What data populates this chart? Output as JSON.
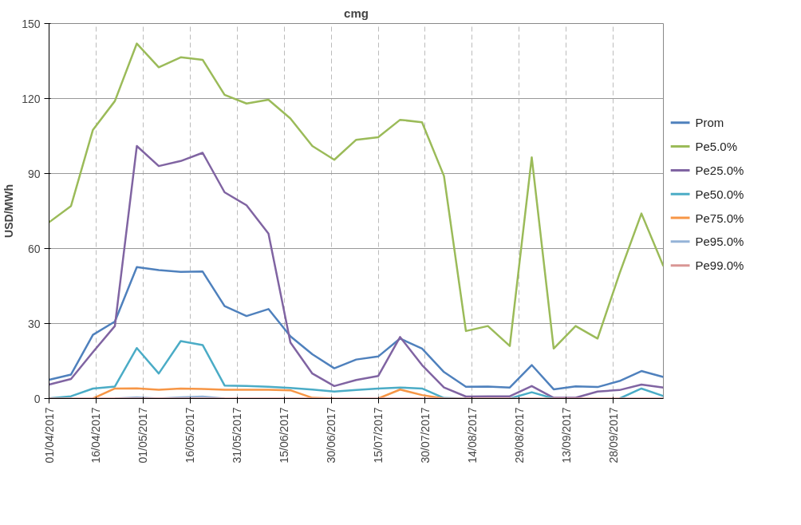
{
  "chart_data": {
    "type": "line",
    "title": "cmg",
    "ylabel": "USD/MWh",
    "x": [
      "2017-04-01",
      "2017-04-08",
      "2017-04-15",
      "2017-04-22",
      "2017-04-29",
      "2017-05-06",
      "2017-05-13",
      "2017-05-20",
      "2017-05-27",
      "2017-06-03",
      "2017-06-10",
      "2017-06-17",
      "2017-06-24",
      "2017-07-01",
      "2017-07-08",
      "2017-07-15",
      "2017-07-22",
      "2017-07-29",
      "2017-08-05",
      "2017-08-12",
      "2017-08-19",
      "2017-08-26",
      "2017-09-02",
      "2017-09-09",
      "2017-09-16",
      "2017-09-23",
      "2017-09-30",
      "2017-10-07",
      "2017-10-14"
    ],
    "series": [
      {
        "name": "Prom",
        "color": "#4f81bd",
        "values": [
          7.5,
          9.6,
          25.5,
          30.8,
          52.6,
          51.4,
          50.7,
          50.8,
          37,
          33,
          35.8,
          24.9,
          17.7,
          12.1,
          15.6,
          16.8,
          24,
          20,
          10.6,
          4.7,
          4.8,
          4.4,
          13.4,
          3.7,
          4.9,
          4.6,
          7,
          11,
          8.6
        ]
      },
      {
        "name": "Pe5.0%",
        "color": "#9bbb59",
        "values": [
          70.5,
          77,
          107.5,
          119,
          142,
          132.5,
          136.5,
          135.5,
          121.5,
          118,
          119.5,
          112,
          101,
          95.5,
          103.5,
          104.5,
          111.5,
          110.5,
          89,
          27,
          29,
          21,
          96.5,
          20,
          29,
          24,
          50,
          74,
          53
        ]
      },
      {
        "name": "Pe25.0%",
        "color": "#8064a2",
        "values": [
          5.6,
          7.8,
          18.6,
          29,
          101,
          93,
          95,
          98.3,
          82.5,
          77.3,
          66,
          22.4,
          10,
          5,
          7.4,
          9,
          24.6,
          13.4,
          4.4,
          0.8,
          0.9,
          0.9,
          5,
          0.3,
          0.3,
          2.8,
          3.4,
          5.6,
          4.4
        ]
      },
      {
        "name": "Pe50.0%",
        "color": "#4bacc6",
        "values": [
          0.1,
          0.9,
          4,
          4.8,
          20.2,
          10,
          23,
          21.4,
          5.2,
          5,
          4.7,
          4.2,
          3.6,
          2.8,
          3.4,
          4,
          4.4,
          4,
          0.2,
          0,
          null,
          0,
          2.5,
          0,
          null,
          null,
          0,
          4,
          1
        ]
      },
      {
        "name": "Pe75.0%",
        "color": "#f79646",
        "values": [
          null,
          null,
          0,
          4,
          4.1,
          3.5,
          4,
          3.8,
          3.5,
          3.5,
          3.5,
          3.3,
          0.3,
          0,
          null,
          0,
          3.6,
          1.4,
          0,
          null,
          null,
          null,
          null,
          null,
          null,
          null,
          null,
          null,
          null
        ]
      },
      {
        "name": "Pe95.0%",
        "color": "#95b3d7",
        "values": [
          null,
          null,
          null,
          0,
          0.5,
          0,
          0.5,
          0.8,
          0,
          null,
          null,
          null,
          null,
          null,
          null,
          null,
          null,
          null,
          null,
          null,
          null,
          null,
          null,
          null,
          null,
          null,
          null,
          null,
          null
        ]
      },
      {
        "name": "Pe99.0%",
        "color": "#d99694",
        "values": [
          0,
          0,
          0,
          0,
          0,
          0,
          0,
          0,
          0,
          0,
          0,
          0,
          0,
          0,
          0,
          0,
          0,
          0,
          0,
          0,
          0,
          0,
          0,
          0,
          0,
          0,
          0,
          0,
          0
        ]
      }
    ],
    "xlim": [
      "2017-04-01",
      "2017-10-14"
    ],
    "xticks": [
      {
        "value": "2017-04-01",
        "label": "01/04/2017"
      },
      {
        "value": "2017-04-16",
        "label": "16/04/2017"
      },
      {
        "value": "2017-05-01",
        "label": "01/05/2017"
      },
      {
        "value": "2017-05-16",
        "label": "16/05/2017"
      },
      {
        "value": "2017-05-31",
        "label": "31/05/2017"
      },
      {
        "value": "2017-06-15",
        "label": "15/06/2017"
      },
      {
        "value": "2017-06-30",
        "label": "30/06/2017"
      },
      {
        "value": "2017-07-15",
        "label": "15/07/2017"
      },
      {
        "value": "2017-07-30",
        "label": "30/07/2017"
      },
      {
        "value": "2017-08-14",
        "label": "14/08/2017"
      },
      {
        "value": "2017-08-29",
        "label": "29/08/2017"
      },
      {
        "value": "2017-09-13",
        "label": "13/09/2017"
      },
      {
        "value": "2017-09-28",
        "label": "28/09/2017"
      }
    ],
    "ylim": [
      0,
      150
    ],
    "yticks": [
      0,
      30,
      60,
      90,
      120,
      150
    ],
    "grid": true,
    "legend": "right"
  }
}
